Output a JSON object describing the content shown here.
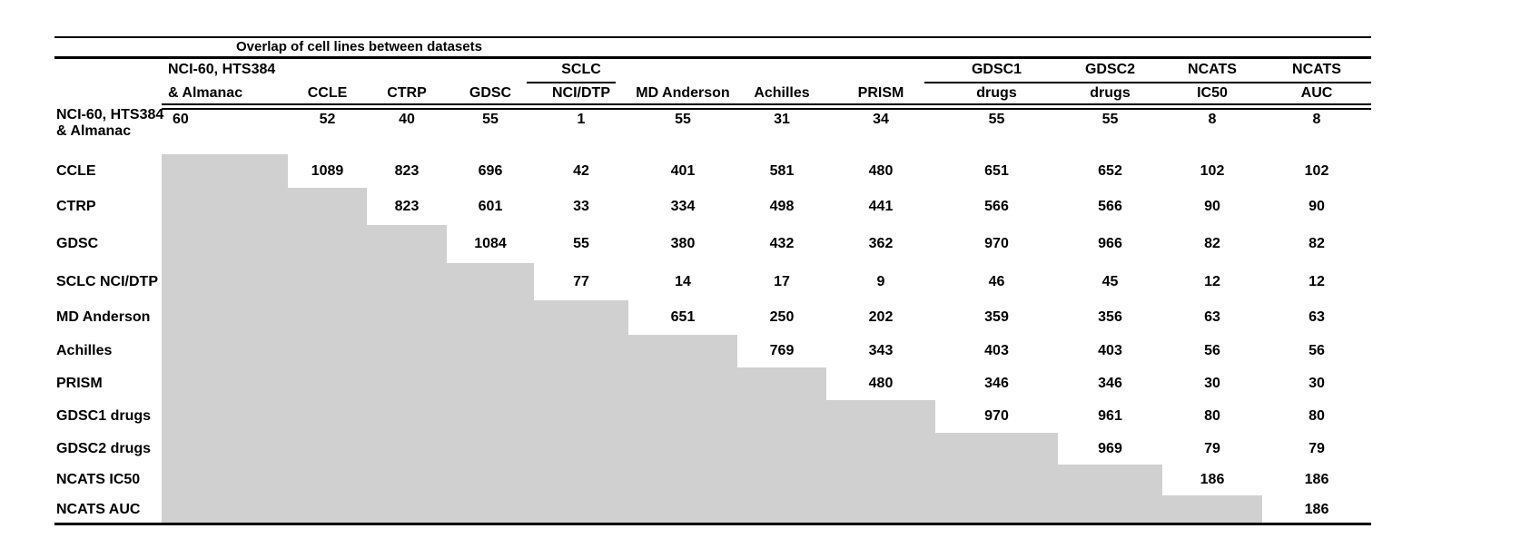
{
  "title": "Overlap of cell lines between datasets",
  "chart_data": {
    "type": "table",
    "title": "Overlap of cell lines between datasets",
    "description_visible": "",
    "column_headers_line1": [
      "NCI-60, HTS384",
      "",
      "",
      "",
      "SCLC",
      "",
      "",
      "",
      "GDSC1",
      "GDSC2",
      "NCATS",
      "NCATS"
    ],
    "column_headers_line2": [
      "& Almanac",
      "CCLE",
      "CTRP",
      "GDSC",
      "NCI/DTP",
      "MD Anderson",
      "Achilles",
      "PRISM",
      "drugs",
      "drugs",
      "IC50",
      "AUC"
    ],
    "row_labels": [
      "NCI-60, HTS384 & Almanac",
      "CCLE",
      "CTRP",
      "GDSC",
      "SCLC NCI/DTP",
      "MD Anderson",
      "Achilles",
      "PRISM",
      "GDSC1 drugs",
      "GDSC2 drugs",
      "NCATS IC50",
      "NCATS AUC"
    ],
    "matrix": [
      [
        60,
        52,
        40,
        55,
        1,
        55,
        31,
        34,
        55,
        55,
        8,
        8
      ],
      [
        null,
        1089,
        823,
        696,
        42,
        401,
        581,
        480,
        651,
        652,
        102,
        102
      ],
      [
        null,
        null,
        823,
        601,
        33,
        334,
        498,
        441,
        566,
        566,
        90,
        90
      ],
      [
        null,
        null,
        null,
        1084,
        55,
        380,
        432,
        362,
        970,
        966,
        82,
        82
      ],
      [
        null,
        null,
        null,
        null,
        77,
        14,
        17,
        9,
        46,
        45,
        12,
        12
      ],
      [
        null,
        null,
        null,
        null,
        null,
        651,
        250,
        202,
        359,
        356,
        63,
        63
      ],
      [
        null,
        null,
        null,
        null,
        null,
        null,
        769,
        343,
        403,
        403,
        56,
        56
      ],
      [
        null,
        null,
        null,
        null,
        null,
        null,
        null,
        480,
        346,
        346,
        30,
        30
      ],
      [
        null,
        null,
        null,
        null,
        null,
        null,
        null,
        null,
        970,
        961,
        80,
        80
      ],
      [
        null,
        null,
        null,
        null,
        null,
        null,
        null,
        null,
        null,
        969,
        79,
        79
      ],
      [
        null,
        null,
        null,
        null,
        null,
        null,
        null,
        null,
        null,
        null,
        186,
        186
      ],
      [
        null,
        null,
        null,
        null,
        null,
        null,
        null,
        null,
        null,
        null,
        null,
        186
      ]
    ],
    "shading": "lower-left triangle shaded gray (no values shown)",
    "grid": "horizontal rules only",
    "colors": {
      "shade": "#d0d0d0",
      "text": "#000000",
      "background": "#ffffff",
      "rules": "#000000"
    }
  }
}
